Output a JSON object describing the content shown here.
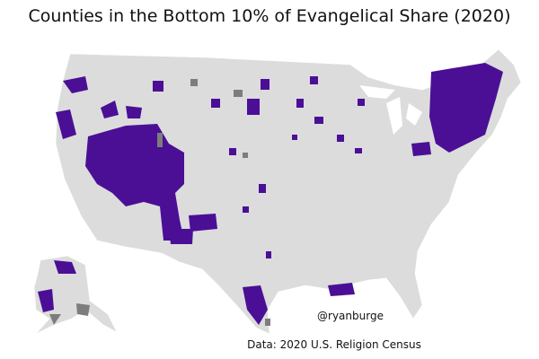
{
  "title": "Counties in the Bottom 10% of Evangelical Share (2020)",
  "handle": "@ryanburge",
  "source": "Data: 2020 U.S. Religion Census"
}
